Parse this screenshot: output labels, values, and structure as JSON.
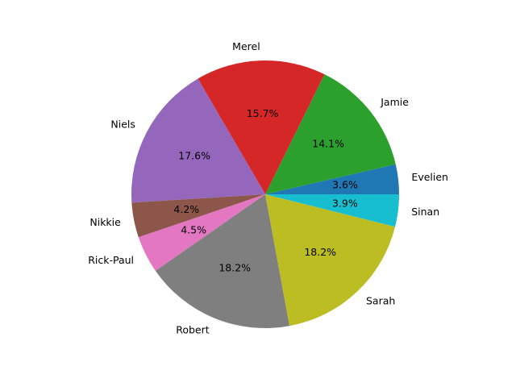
{
  "chart_data": {
    "type": "pie",
    "title": "",
    "start_angle_deg": 0,
    "direction": "counterclockwise",
    "slices": [
      {
        "label": "Evelien",
        "value": 3.6,
        "pct_label": "3.6%",
        "color": "#1f77b4"
      },
      {
        "label": "Jamie",
        "value": 14.1,
        "pct_label": "14.1%",
        "color": "#2ca02c"
      },
      {
        "label": "Merel",
        "value": 15.7,
        "pct_label": "15.7%",
        "color": "#d62728"
      },
      {
        "label": "Niels",
        "value": 17.6,
        "pct_label": "17.6%",
        "color": "#9467bd"
      },
      {
        "label": "Nikkie",
        "value": 4.2,
        "pct_label": "4.2%",
        "color": "#8c564b"
      },
      {
        "label": "Rick-Paul",
        "value": 4.5,
        "pct_label": "4.5%",
        "color": "#e377c2"
      },
      {
        "label": "Robert",
        "value": 18.2,
        "pct_label": "18.2%",
        "color": "#7f7f7f"
      },
      {
        "label": "Sarah",
        "value": 18.2,
        "pct_label": "18.2%",
        "color": "#bcbd22"
      },
      {
        "label": "Sinan",
        "value": 3.9,
        "pct_label": "3.9%",
        "color": "#17becf"
      }
    ]
  }
}
